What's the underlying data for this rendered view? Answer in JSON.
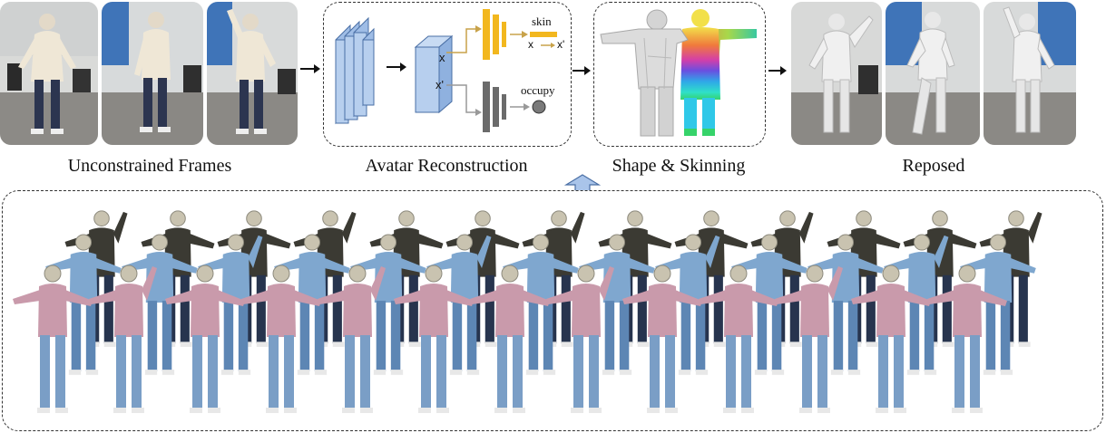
{
  "stages": {
    "frames_caption": "Unconstrained Frames",
    "reconstruction_caption": "Avatar Reconstruction",
    "shape_caption": "Shape & Skinning",
    "reposed_caption": "Reposed"
  },
  "network": {
    "x_label": "x",
    "xprime_label": "x'",
    "skin_label": "skin",
    "skin_map_from": "x",
    "skin_map_to": "x'",
    "occupy_label": "occupy"
  },
  "colors": {
    "encoder_blue": "#9fbde6",
    "skin_head_yellow": "#f2b71e",
    "occupancy_gray": "#6b6b6b",
    "upsample_arrow": "#a9c4ea"
  }
}
